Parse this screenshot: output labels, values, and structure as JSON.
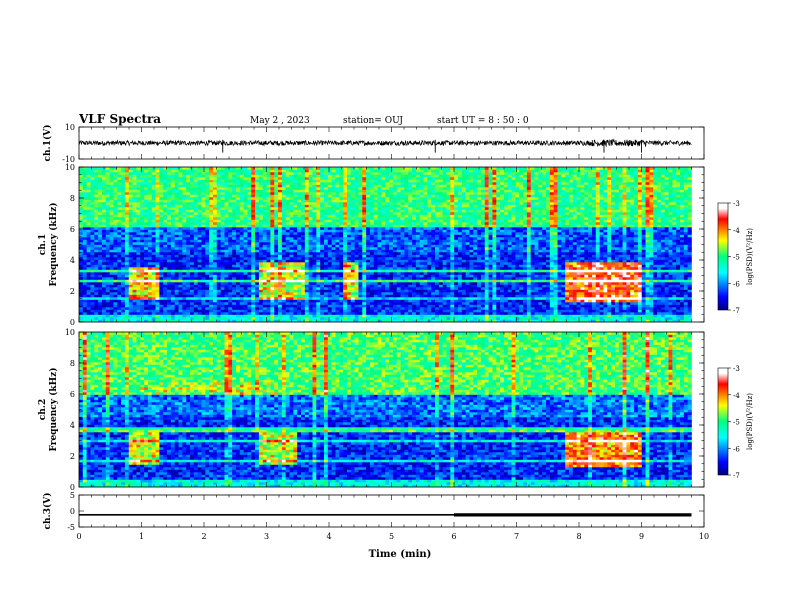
{
  "header": {
    "title": "VLF Spectra",
    "date": "May 2 , 2023",
    "station": "station= OUJ",
    "start": "start UT = 8 : 50 : 0"
  },
  "colors": {
    "background": "#ffffff",
    "axis": "#000000",
    "spectrogram_low": "#00007f",
    "spectrogram_mid": "#00ff7f",
    "spectrogram_high": "#7f0000"
  },
  "chart_data": [
    {
      "type": "line",
      "panel": "ch1-waveform",
      "ylabel": "ch.1(V)",
      "ylim": [
        -10,
        10
      ],
      "yticks": [
        10,
        -10
      ],
      "xlim": [
        0,
        10
      ],
      "description_values": {
        "baseline": 0,
        "typical_amplitude": 1.5,
        "spikes_at_min": [
          2.3,
          5.7,
          8.4,
          9.0
        ]
      }
    },
    {
      "type": "heatmap",
      "panel": "ch1-spectrogram",
      "ylabel": "ch.1\nFrequency (kHz)",
      "ylabel_lines": [
        "ch.1",
        "Frequency (kHz)"
      ],
      "ylim": [
        0,
        10
      ],
      "yticks": [
        0,
        2,
        4,
        6,
        8,
        10
      ],
      "xlim": [
        0,
        10
      ],
      "colorbar": {
        "label": "log(PSD)(V²/Hz)",
        "ticks": [
          -3,
          -4,
          -5,
          -6,
          -7
        ],
        "range": [
          -7,
          -3
        ]
      },
      "bands": [
        {
          "f_kHz": [
            6.2,
            10
          ],
          "level": -5.0
        },
        {
          "f_kHz": [
            4.5,
            6.2
          ],
          "level": -6.2
        },
        {
          "f_kHz": [
            0.5,
            4.5
          ],
          "level": -6.4
        },
        {
          "f_kHz": [
            0,
            0.5
          ],
          "level": -5.5
        }
      ],
      "enhancements": [
        {
          "t_min": [
            0.8,
            1.3
          ],
          "f_kHz": [
            1.5,
            3.5
          ],
          "level": -4.3
        },
        {
          "t_min": [
            2.9,
            3.6
          ],
          "f_kHz": [
            1.5,
            3.8
          ],
          "level": -4.5
        },
        {
          "t_min": [
            4.2,
            4.5
          ],
          "f_kHz": [
            1.5,
            3.8
          ],
          "level": -4.4
        },
        {
          "t_min": [
            7.8,
            9.0
          ],
          "f_kHz": [
            1.3,
            3.8
          ],
          "level": -3.8
        }
      ]
    },
    {
      "type": "heatmap",
      "panel": "ch2-spectrogram",
      "ylabel": "ch.2\nFrequency (kHz)",
      "ylabel_lines": [
        "ch.2",
        "Frequency (kHz)"
      ],
      "ylim": [
        0,
        10
      ],
      "yticks": [
        0,
        2,
        4,
        6,
        8,
        10
      ],
      "xlim": [
        0,
        10
      ],
      "colorbar": {
        "label": "log(PSD)(V²/Hz)",
        "ticks": [
          -3,
          -4,
          -5,
          -6,
          -7
        ],
        "range": [
          -7,
          -3
        ]
      },
      "bands": [
        {
          "f_kHz": [
            6.0,
            10
          ],
          "level": -4.9
        },
        {
          "f_kHz": [
            4.5,
            6.0
          ],
          "level": -6.1
        },
        {
          "f_kHz": [
            0.5,
            4.5
          ],
          "level": -6.4
        },
        {
          "f_kHz": [
            0,
            0.5
          ],
          "level": -5.5
        }
      ],
      "enhancements": [
        {
          "t_min": [
            1.0,
            3.2
          ],
          "f_kHz": [
            6.0,
            6.8
          ],
          "level": -4.6
        },
        {
          "t_min": [
            0.8,
            1.3
          ],
          "f_kHz": [
            1.5,
            3.5
          ],
          "level": -4.5
        },
        {
          "t_min": [
            2.9,
            3.5
          ],
          "f_kHz": [
            1.5,
            3.5
          ],
          "level": -4.6
        },
        {
          "t_min": [
            7.8,
            9.0
          ],
          "f_kHz": [
            1.3,
            3.6
          ],
          "level": -3.9
        }
      ]
    },
    {
      "type": "line",
      "panel": "ch3-waveform",
      "ylabel": "ch.3(V)",
      "ylim": [
        -5,
        5
      ],
      "yticks": [
        5,
        0,
        -5
      ],
      "xlim": [
        0,
        10
      ],
      "segments": [
        {
          "t_min": [
            0,
            6
          ],
          "value": -1.2
        },
        {
          "t_min": [
            6,
            9.8
          ],
          "value": -1.2
        }
      ]
    }
  ],
  "xaxis": {
    "label": "Time (min)",
    "ticks": [
      0,
      1,
      2,
      3,
      4,
      5,
      6,
      7,
      8,
      9,
      10
    ]
  }
}
